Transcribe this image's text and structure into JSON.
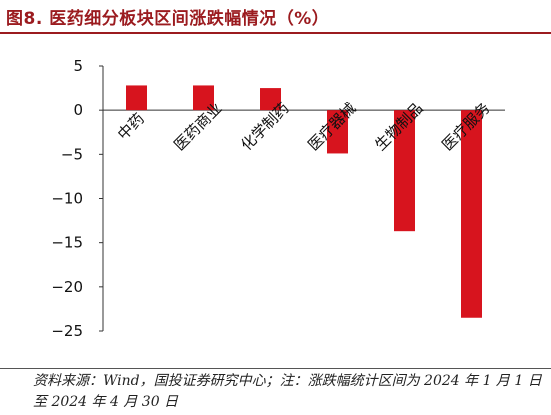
{
  "title": "图8. 医药细分板块区间涨跌幅情况（%）",
  "source": "资料来源：Wind，国投证券研究中心；注：涨跌幅统计区间为 2024 年 1 月 1 日至 2024 年 4 月 30 日",
  "colors": {
    "bar": "#d7141e",
    "title": "#9b1b1f",
    "axis": "#333333"
  },
  "chart_data": {
    "type": "bar",
    "categories": [
      "中药",
      "医药商业",
      "化学制药",
      "医疗器械",
      "生物制品",
      "医疗服务"
    ],
    "values": [
      2.8,
      2.8,
      2.5,
      -4.9,
      -13.7,
      -23.5
    ],
    "yticks": [
      5,
      0,
      -5,
      -10,
      -15,
      -20,
      -25
    ],
    "ytick_labels": [
      "5",
      "0",
      "−5",
      "−10",
      "−15",
      "−20",
      "−25"
    ],
    "ylim": [
      -25,
      5
    ],
    "grid": false
  }
}
